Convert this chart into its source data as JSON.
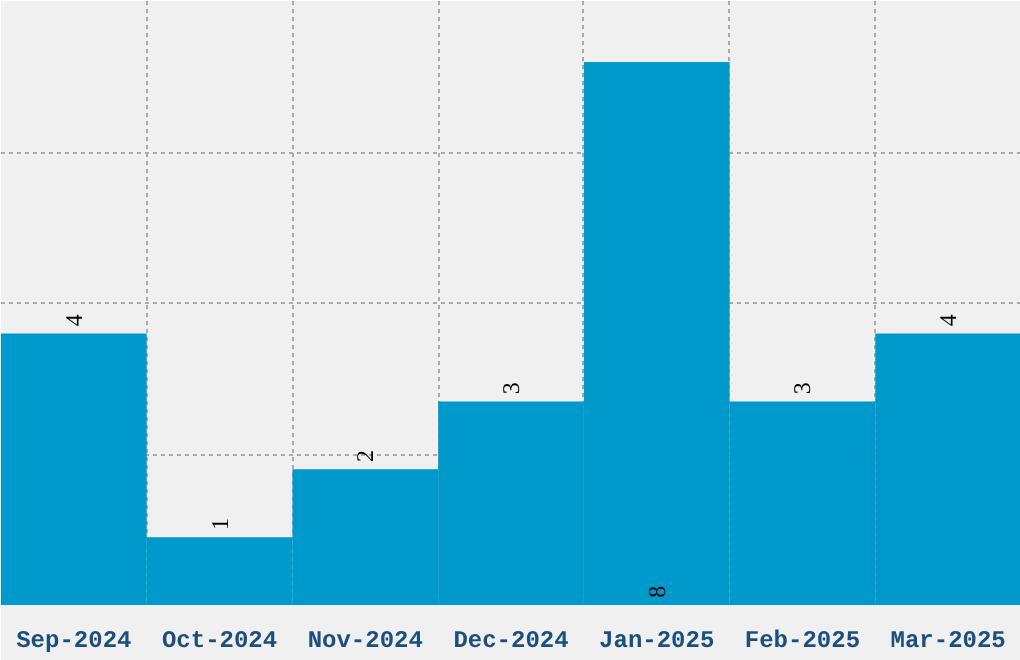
{
  "chart_data": {
    "type": "bar",
    "categories": [
      "Sep-2024",
      "Oct-2024",
      "Nov-2024",
      "Dec-2024",
      "Jan-2025",
      "Feb-2025",
      "Mar-2025"
    ],
    "values": [
      4,
      1,
      2,
      3,
      8,
      3,
      4
    ],
    "color": "#0099cc",
    "ylim": [
      0,
      8.9
    ],
    "tick_labels": "x",
    "grid": true,
    "data_labels": true
  }
}
